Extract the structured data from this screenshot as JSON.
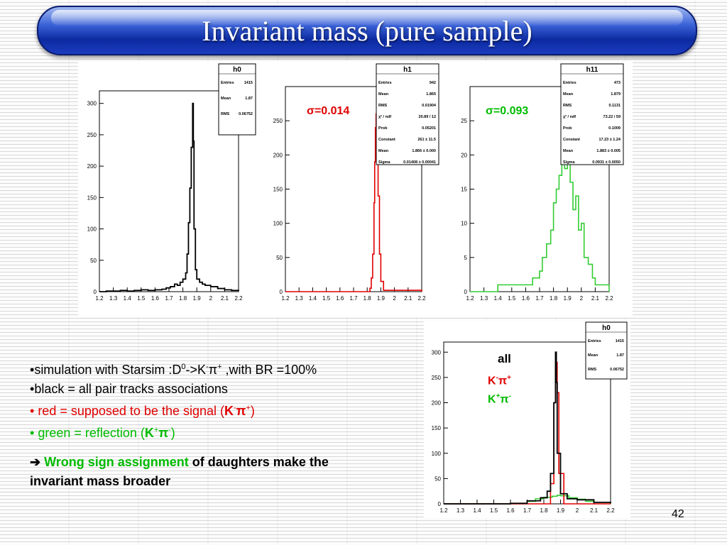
{
  "title": "Invariant mass (pure sample)",
  "page_number": "42",
  "bullets": {
    "b1_pre": "simulation with Starsim :D",
    "b1_sup0": "0",
    "b1_mid": "->K",
    "b1_supm": "-",
    "b1_pi": "π",
    "b1_supp": "+",
    "b1_post": " ,with BR =100%",
    "b2": "black  = all pair tracks associations",
    "b3_pre": " red     = supposed to be the signal (",
    "b3_K": "K",
    "b3_supm": "-",
    "b3_pi": "π",
    "b3_supp": "+",
    "b3_post": ")",
    "b4_pre": " green = reflection (",
    "b4_K": "K",
    "b4_supp": "+",
    "b4_pi": "π",
    "b4_supm": "-",
    "b4_post": ")"
  },
  "conclusion": {
    "arrow": "➔",
    "highlight": "Wrong sign assignment",
    "rest1": " of daughters make the",
    "rest2": "invariant mass broader"
  },
  "sigma_labels": {
    "h1": "σ=0.014",
    "h11": "σ=0.093"
  },
  "legend": {
    "all": "all",
    "red": "K-π+",
    "green": "K+π-"
  },
  "colors": {
    "signal": "#e00000",
    "reflection": "#33cc33",
    "all": "#000000",
    "title_bar": "#1c3cc0"
  },
  "chart_data": [
    {
      "type": "bar",
      "name": "h0",
      "xlim": [
        1.2,
        2.2
      ],
      "ylim": [
        0,
        320
      ],
      "x_ticks": [
        "1.2",
        "1.3",
        "1.4",
        "1.5",
        "1.6",
        "1.7",
        "1.8",
        "1.9",
        "2",
        "2.1",
        "2.2"
      ],
      "y_ticks": [
        "0",
        "50",
        "100",
        "150",
        "200",
        "250",
        "300"
      ],
      "stats": [
        [
          "Entries",
          "1415"
        ],
        [
          "Mean",
          "1.87"
        ],
        [
          "RMS",
          "0.06752"
        ]
      ],
      "series": [
        {
          "color": "#000000",
          "x": [
            1.2,
            1.25,
            1.3,
            1.35,
            1.4,
            1.45,
            1.5,
            1.55,
            1.6,
            1.65,
            1.68,
            1.71,
            1.74,
            1.76,
            1.78,
            1.8,
            1.82,
            1.83,
            1.84,
            1.85,
            1.86,
            1.87,
            1.875,
            1.88,
            1.89,
            1.9,
            1.92,
            1.94,
            1.96,
            2.0,
            2.05,
            2.1,
            2.15,
            2.2
          ],
          "y": [
            0,
            1,
            1,
            2,
            1,
            2,
            3,
            2,
            3,
            4,
            6,
            8,
            12,
            10,
            15,
            20,
            30,
            60,
            110,
            165,
            230,
            300,
            240,
            100,
            35,
            20,
            15,
            12,
            10,
            8,
            5,
            3,
            2,
            1
          ]
        }
      ]
    },
    {
      "type": "line",
      "name": "h1",
      "xlim": [
        1.2,
        2.2
      ],
      "ylim": [
        0,
        300
      ],
      "x_ticks": [
        "1.2",
        "1.3",
        "1.4",
        "1.5",
        "1.6",
        "1.7",
        "1.8",
        "1.9",
        "2",
        "2.1",
        "2.2"
      ],
      "y_ticks": [
        "0",
        "50",
        "100",
        "150",
        "200",
        "250"
      ],
      "stats": [
        [
          "Entries",
          "942"
        ],
        [
          "Mean",
          "1.865"
        ],
        [
          "RMS",
          "0.01904"
        ],
        [
          "χ² / ndf",
          "20.89 / 12"
        ],
        [
          "Prob",
          "0.05201"
        ],
        [
          "Constant",
          "261 ± 11.5"
        ],
        [
          "Mean",
          "1.866 ± 0.000"
        ],
        [
          "Sigma",
          "0.01408 ± 0.00041"
        ]
      ],
      "series": [
        {
          "color": "#e00000",
          "x": [
            1.2,
            1.7,
            1.8,
            1.82,
            1.83,
            1.84,
            1.85,
            1.855,
            1.86,
            1.865,
            1.87,
            1.875,
            1.88,
            1.89,
            1.9,
            1.92,
            2.2
          ],
          "y": [
            0,
            0,
            0,
            5,
            20,
            55,
            130,
            190,
            240,
            260,
            245,
            200,
            140,
            55,
            15,
            2,
            0
          ]
        }
      ]
    },
    {
      "type": "line",
      "name": "h11",
      "xlim": [
        1.2,
        2.2
      ],
      "ylim": [
        0,
        30
      ],
      "x_ticks": [
        "1.2",
        "1.3",
        "1.4",
        "1.5",
        "1.6",
        "1.7",
        "1.8",
        "1.9",
        "2",
        "2.1",
        "2.2"
      ],
      "y_ticks": [
        "0",
        "5",
        "10",
        "15",
        "20",
        "25"
      ],
      "stats": [
        [
          "Entries",
          "473"
        ],
        [
          "Mean",
          "1.879"
        ],
        [
          "RMS",
          "0.1131"
        ],
        [
          "χ² / ndf",
          "73.22 / 59"
        ],
        [
          "Prob",
          "0.1009"
        ],
        [
          "Constant",
          "17.23 ± 1.24"
        ],
        [
          "Mean",
          "1.883 ± 0.005"
        ],
        [
          "Sigma",
          "0.0931 ± 0.0050"
        ]
      ],
      "series": [
        {
          "color": "#33cc33",
          "x": [
            1.2,
            1.3,
            1.4,
            1.5,
            1.55,
            1.6,
            1.65,
            1.7,
            1.72,
            1.75,
            1.78,
            1.8,
            1.82,
            1.84,
            1.86,
            1.88,
            1.9,
            1.92,
            1.94,
            1.96,
            1.98,
            2.0,
            2.02,
            2.05,
            2.08,
            2.1,
            2.15,
            2.2
          ],
          "y": [
            0,
            0,
            1,
            1,
            1,
            1,
            2,
            3,
            5,
            7,
            9,
            13,
            15,
            17,
            22,
            18,
            26,
            16,
            12,
            14,
            9,
            10,
            5,
            4,
            2,
            1,
            1,
            0
          ]
        }
      ]
    },
    {
      "type": "line",
      "name": "h0",
      "xlim": [
        1.2,
        2.2
      ],
      "ylim": [
        0,
        320
      ],
      "x_ticks": [
        "1.2",
        "1.3",
        "1.4",
        "1.5",
        "1.6",
        "1.7",
        "1.8",
        "1.9",
        "2",
        "2.1",
        "2.2"
      ],
      "y_ticks": [
        "0",
        "50",
        "100",
        "150",
        "200",
        "250",
        "300"
      ],
      "stats": [
        [
          "Entries",
          "1415"
        ],
        [
          "Mean",
          "1.87"
        ],
        [
          "RMS",
          "0.06752"
        ]
      ],
      "series": [
        {
          "color": "#33cc33",
          "x": [
            1.2,
            1.6,
            1.7,
            1.75,
            1.8,
            1.85,
            1.88,
            1.9,
            1.95,
            2.0,
            2.05,
            2.1,
            2.2
          ],
          "y": [
            0,
            1,
            5,
            10,
            13,
            15,
            17,
            16,
            12,
            9,
            5,
            3,
            0
          ]
        },
        {
          "color": "#e00000",
          "x": [
            1.2,
            1.8,
            1.84,
            1.86,
            1.87,
            1.875,
            1.88,
            1.89,
            1.92,
            2.2
          ],
          "y": [
            0,
            0,
            40,
            200,
            270,
            280,
            220,
            60,
            0,
            0
          ]
        },
        {
          "color": "#000000",
          "x": [
            1.2,
            1.6,
            1.7,
            1.78,
            1.82,
            1.84,
            1.86,
            1.87,
            1.875,
            1.88,
            1.9,
            1.94,
            2.0,
            2.1,
            2.2
          ],
          "y": [
            0,
            1,
            6,
            12,
            25,
            60,
            200,
            300,
            240,
            100,
            20,
            10,
            8,
            3,
            1
          ]
        }
      ]
    }
  ]
}
